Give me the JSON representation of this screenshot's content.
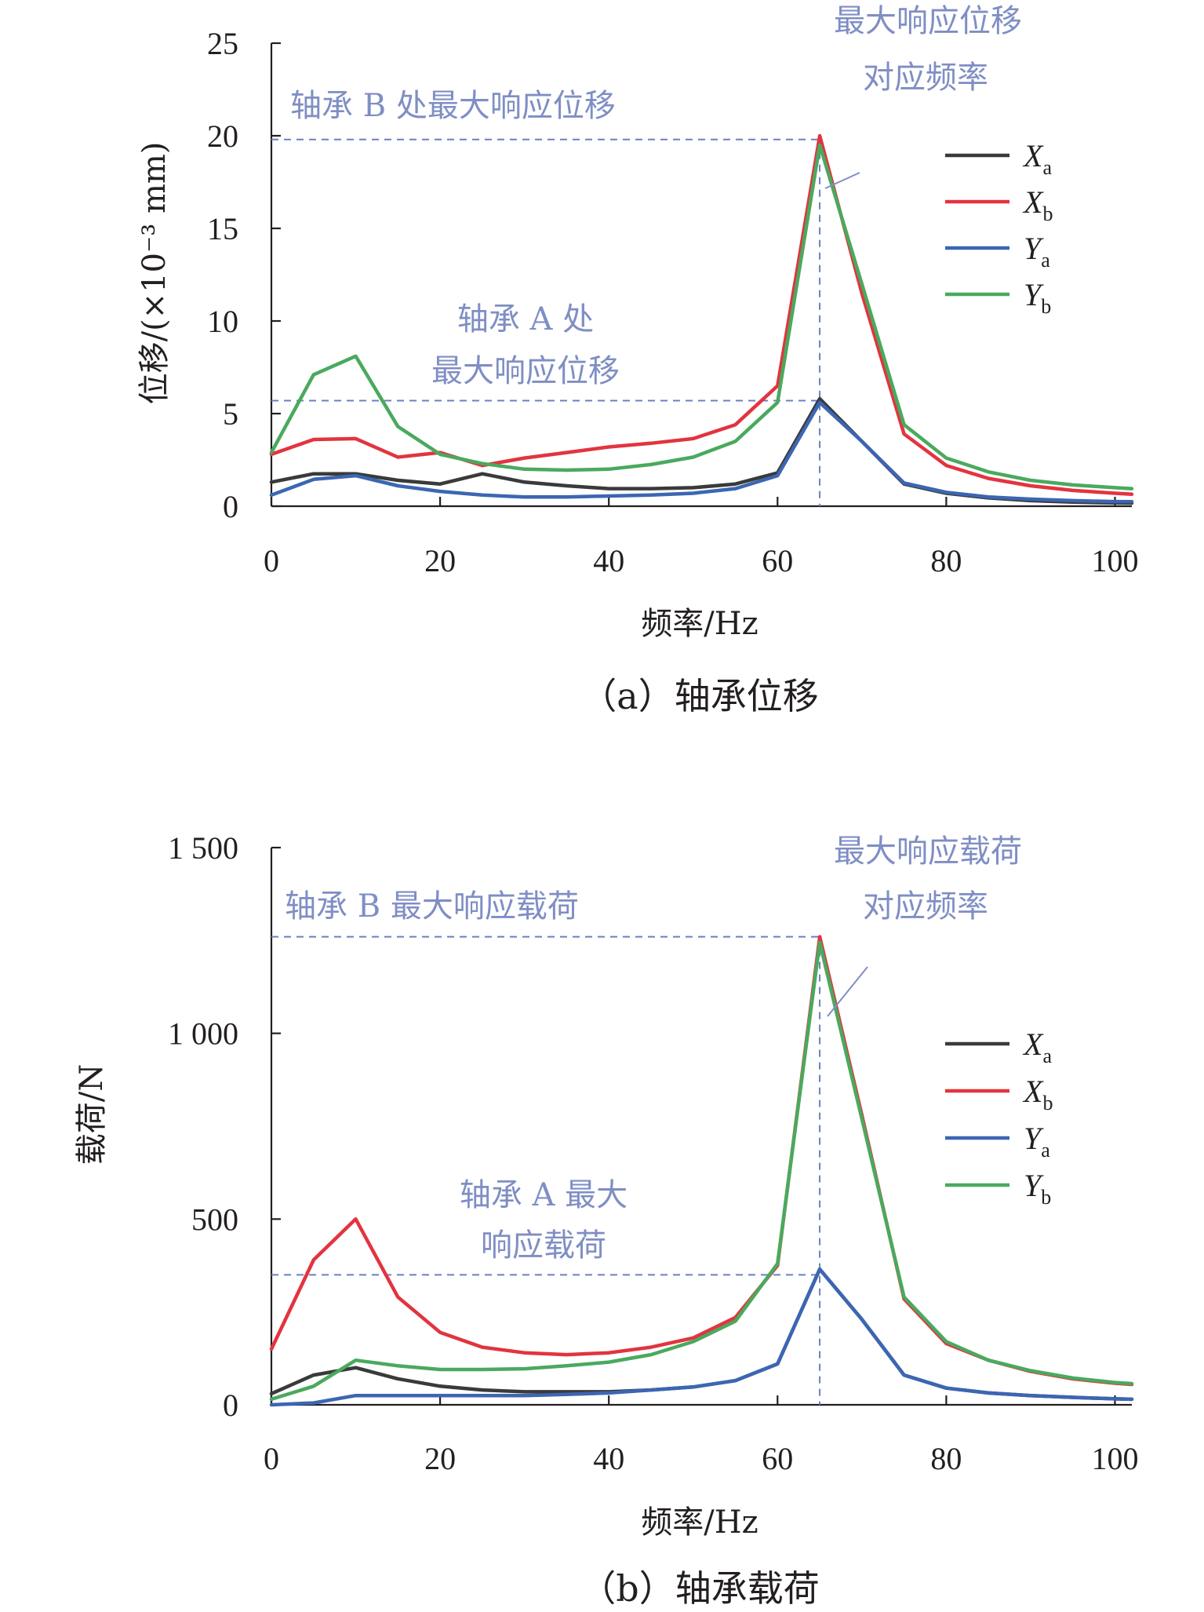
{
  "chart_data": [
    {
      "type": "line",
      "panel": "a",
      "caption": "（a）轴承位移",
      "xlabel": "频率/Hz",
      "ylabel": "位移/(×10⁻³ mm)",
      "xlim": [
        0,
        102
      ],
      "ylim": [
        0,
        25
      ],
      "xticks": [
        0,
        20,
        40,
        60,
        80,
        100
      ],
      "yticks": [
        0,
        5,
        10,
        15,
        20,
        25
      ],
      "ytick_labels": [
        "0",
        "5",
        "10",
        "15",
        "20",
        "25"
      ],
      "x": [
        0,
        5,
        10,
        15,
        20,
        25,
        30,
        35,
        40,
        45,
        50,
        55,
        60,
        65,
        70,
        75,
        80,
        85,
        90,
        95,
        100,
        102
      ],
      "series": [
        {
          "name": "X",
          "sub": "a",
          "color": "#3a3a3a",
          "values": [
            1.3,
            1.75,
            1.75,
            1.4,
            1.2,
            1.75,
            1.3,
            1.1,
            0.95,
            0.95,
            1.0,
            1.2,
            1.8,
            5.8,
            3.5,
            1.2,
            0.7,
            0.45,
            0.3,
            0.22,
            0.18,
            0.17
          ]
        },
        {
          "name": "X",
          "sub": "b",
          "color": "#e2343f",
          "values": [
            2.8,
            3.6,
            3.65,
            2.65,
            2.9,
            2.2,
            2.6,
            2.9,
            3.2,
            3.4,
            3.65,
            4.4,
            6.5,
            20.0,
            11.5,
            3.9,
            2.2,
            1.5,
            1.1,
            0.85,
            0.7,
            0.65
          ]
        },
        {
          "name": "Y",
          "sub": "a",
          "color": "#3b66b3",
          "values": [
            0.6,
            1.45,
            1.65,
            1.1,
            0.8,
            0.6,
            0.5,
            0.5,
            0.55,
            0.6,
            0.7,
            0.95,
            1.65,
            5.6,
            3.5,
            1.25,
            0.75,
            0.5,
            0.38,
            0.3,
            0.25,
            0.24
          ]
        },
        {
          "name": "Y",
          "sub": "b",
          "color": "#4aa95e",
          "values": [
            2.9,
            7.1,
            8.1,
            4.3,
            2.8,
            2.3,
            2.0,
            1.95,
            2.0,
            2.25,
            2.65,
            3.5,
            5.6,
            19.5,
            12.0,
            4.4,
            2.6,
            1.85,
            1.4,
            1.15,
            1.0,
            0.95
          ]
        }
      ],
      "guides": {
        "h_a": 5.7,
        "h_b": 19.8,
        "v": 65
      },
      "annotations": {
        "bearing_b": "轴承 B 处最大响应位移",
        "bearing_a_line1": "轴承 A 处",
        "bearing_a_line2": "最大响应位移",
        "freq_line1": "最大响应位移",
        "freq_line2": "对应频率"
      }
    },
    {
      "type": "line",
      "panel": "b",
      "caption": "（b）轴承载荷",
      "xlabel": "频率/Hz",
      "ylabel": "载荷/N",
      "xlim": [
        0,
        102
      ],
      "ylim": [
        0,
        1500
      ],
      "xticks": [
        0,
        20,
        40,
        60,
        80,
        100
      ],
      "yticks": [
        0,
        500,
        1000,
        1500
      ],
      "ytick_labels": [
        "0",
        "500",
        "1 000",
        "1 500"
      ],
      "x": [
        0,
        5,
        10,
        15,
        20,
        25,
        30,
        35,
        40,
        45,
        50,
        55,
        60,
        65,
        70,
        75,
        80,
        85,
        90,
        95,
        100,
        102
      ],
      "series": [
        {
          "name": "X",
          "sub": "a",
          "color": "#3a3a3a",
          "values": [
            30,
            80,
            100,
            70,
            50,
            40,
            35,
            35,
            35,
            40,
            48,
            65,
            110,
            365,
            230,
            80,
            45,
            32,
            25,
            20,
            16,
            15
          ]
        },
        {
          "name": "X",
          "sub": "b",
          "color": "#e2343f",
          "values": [
            150,
            390,
            500,
            290,
            195,
            155,
            140,
            135,
            140,
            155,
            180,
            235,
            375,
            1260,
            780,
            285,
            165,
            120,
            90,
            70,
            58,
            55
          ]
        },
        {
          "name": "Y",
          "sub": "a",
          "color": "#3b66b3",
          "values": [
            0,
            5,
            25,
            25,
            25,
            25,
            25,
            28,
            32,
            40,
            48,
            65,
            110,
            365,
            230,
            80,
            45,
            32,
            25,
            20,
            16,
            15
          ]
        },
        {
          "name": "Y",
          "sub": "b",
          "color": "#4aa95e",
          "values": [
            15,
            50,
            120,
            105,
            95,
            95,
            97,
            105,
            115,
            135,
            170,
            225,
            380,
            1245,
            770,
            290,
            170,
            120,
            92,
            72,
            60,
            57
          ]
        }
      ],
      "guides": {
        "h_a": 350,
        "h_b": 1260,
        "v": 65
      },
      "annotations": {
        "bearing_b": "轴承 B 最大响应载荷",
        "bearing_a_line1": "轴承 A 最大",
        "bearing_a_line2": "响应载荷",
        "freq_line1": "最大响应载荷",
        "freq_line2": "对应频率"
      }
    }
  ]
}
